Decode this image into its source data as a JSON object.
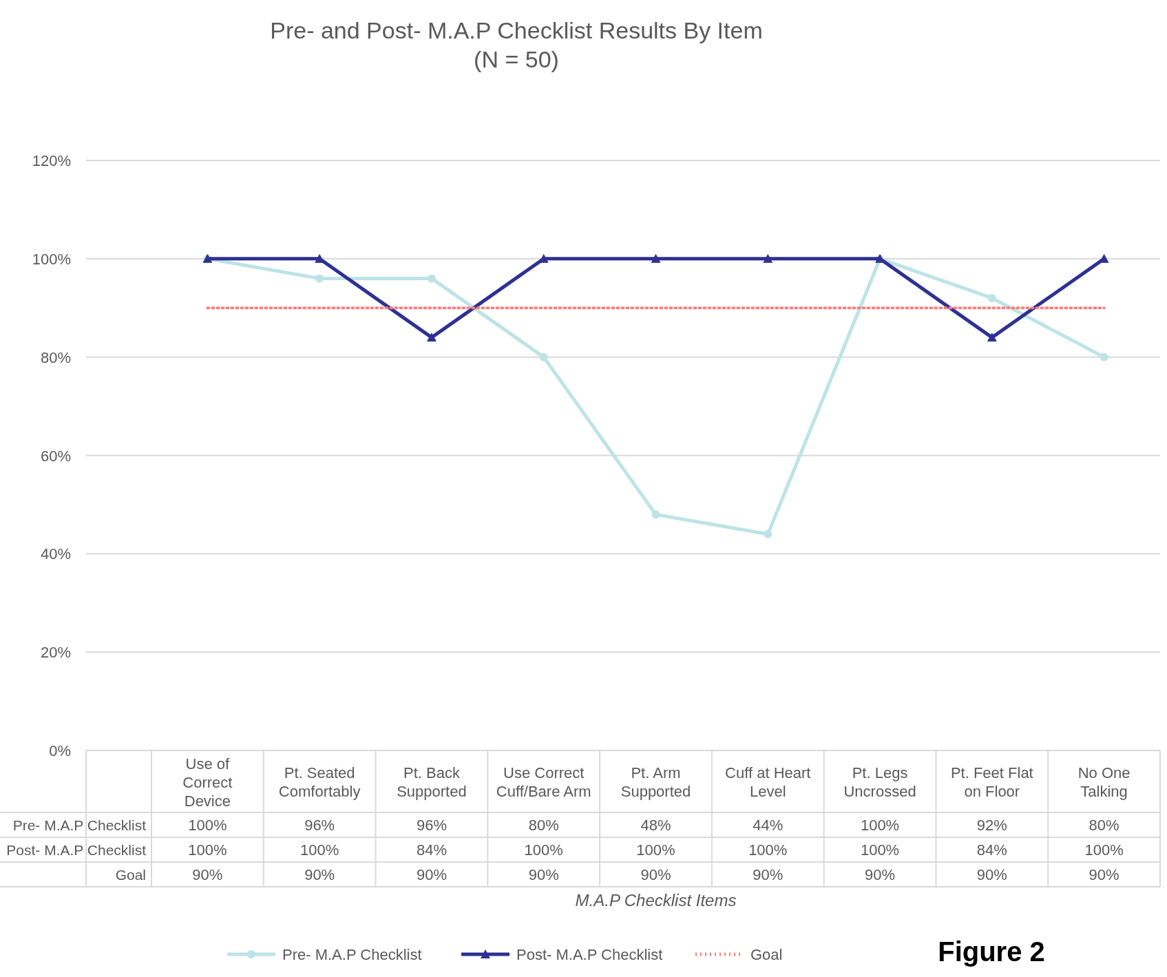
{
  "chart_data": {
    "type": "line",
    "title": "Pre- and Post- M.A.P Checklist Results By Item",
    "subtitle": "(N = 50)",
    "xlabel": "M.A.P Checklist Items",
    "categories": [
      "Use of Correct Device",
      "Pt. Seated Comfortably",
      "Pt. Back Supported",
      "Use Correct Cuff/Bare Arm",
      "Pt. Arm Supported",
      "Cuff at Heart Level",
      "Pt. Legs Uncrossed",
      "Pt. Feet Flat on Floor",
      "No One Talking"
    ],
    "series": [
      {
        "name": "Pre- M.A.P Checklist",
        "color": "#bde3e6",
        "marker": "circle",
        "line_style": "solid",
        "values": [
          100,
          96,
          96,
          80,
          48,
          44,
          100,
          92,
          80
        ],
        "value_labels": [
          "100%",
          "96%",
          "96%",
          "80%",
          "48%",
          "44%",
          "100%",
          "92%",
          "80%"
        ]
      },
      {
        "name": "Post- M.A.P Checklist",
        "color": "#2e3192",
        "marker": "triangle",
        "line_style": "solid",
        "values": [
          100,
          100,
          84,
          100,
          100,
          100,
          100,
          84,
          100
        ],
        "value_labels": [
          "100%",
          "100%",
          "84%",
          "100%",
          "100%",
          "100%",
          "100%",
          "84%",
          "100%"
        ]
      },
      {
        "name": "Goal",
        "color": "#ff7c7c",
        "marker": "none",
        "line_style": "dotted",
        "values": [
          90,
          90,
          90,
          90,
          90,
          90,
          90,
          90,
          90
        ],
        "value_labels": [
          "90%",
          "90%",
          "90%",
          "90%",
          "90%",
          "90%",
          "90%",
          "90%",
          "90%"
        ]
      }
    ],
    "ylim": [
      0,
      120
    ],
    "yticks": [
      {
        "value": 0,
        "label": "0%"
      },
      {
        "value": 20,
        "label": "20%"
      },
      {
        "value": 40,
        "label": "40%"
      },
      {
        "value": 60,
        "label": "60%"
      },
      {
        "value": 80,
        "label": "80%"
      },
      {
        "value": 100,
        "label": "100%"
      },
      {
        "value": 120,
        "label": "120%"
      }
    ],
    "grid": "y",
    "legend": "bottom",
    "annotations": [
      "Figure 2"
    ]
  }
}
